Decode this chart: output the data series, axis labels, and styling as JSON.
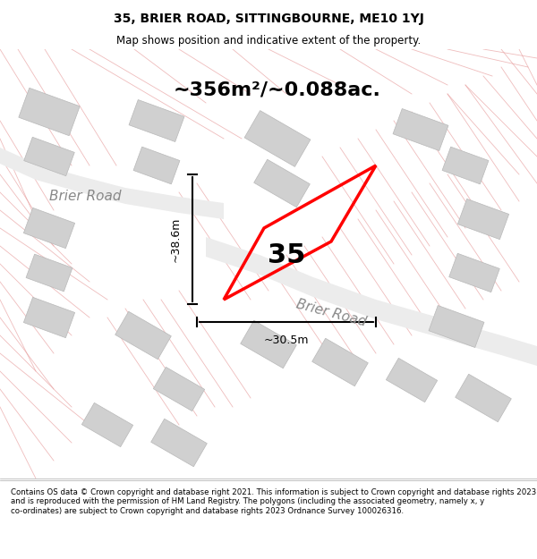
{
  "title_line1": "35, BRIER ROAD, SITTINGBOURNE, ME10 1YJ",
  "title_line2": "Map shows position and indicative extent of the property.",
  "area_text": "~356m²/~0.088ac.",
  "property_number": "35",
  "dim_vertical": "~38.6m",
  "dim_horizontal": "~30.5m",
  "road_label": "Brier Road",
  "footer_text": "Contains OS data © Crown copyright and database right 2021. This information is subject to Crown copyright and database rights 2023 and is reproduced with the permission of HM Land Registry. The polygons (including the associated geometry, namely x, y co-ordinates) are subject to Crown copyright and database rights 2023 Ordnance Survey 100026316.",
  "bg_color": "#f5f5f5",
  "map_bg": "#ffffff",
  "property_color": "#ff0000",
  "building_color": "#d3d3d3",
  "building_outline": "#c0c0c0",
  "road_line_color": "#e8a0a0",
  "road_fill_color": "#eeeeee",
  "footer_bg": "#ffffff",
  "header_bg": "#ffffff"
}
